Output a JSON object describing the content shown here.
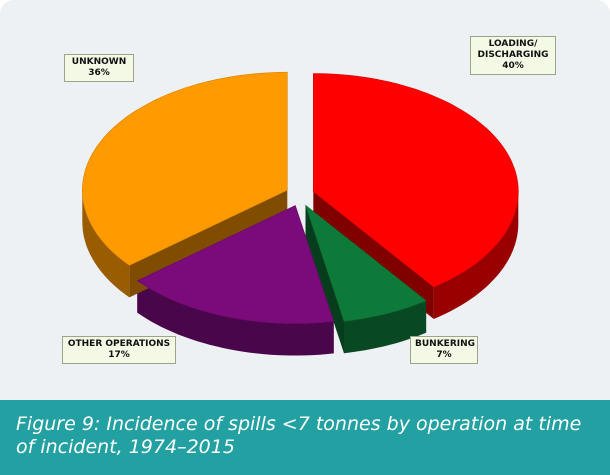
{
  "chart_data": {
    "type": "pie",
    "categories": [
      "LOADING/ DISCHARGING",
      "BUNKERING",
      "OTHER OPERATIONS",
      "UNKNOWN"
    ],
    "values": [
      40,
      7,
      17,
      36
    ],
    "value_labels": [
      "40%",
      "7%",
      "17%",
      "36%"
    ],
    "colors": [
      "#ff0000",
      "#0e7a3a",
      "#7b0a7b",
      "#ff9a00"
    ],
    "caption": "Figure 9: Incidence of spills <7 tonnes by operation at time of incident, 1974–2015"
  }
}
